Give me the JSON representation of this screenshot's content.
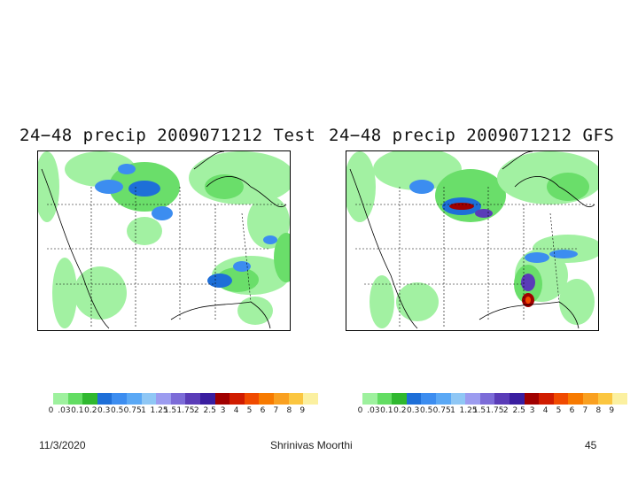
{
  "slide": {
    "date": "11/3/2020",
    "author": "Shrinivas Moorthi",
    "page_number": "45"
  },
  "panels": [
    {
      "title": "24−48 precip 2009071212 Test"
    },
    {
      "title": "24−48 precip 2009071212 GFS"
    }
  ],
  "colorbar": {
    "colors": [
      "#9ef19e",
      "#63dd63",
      "#2fb82f",
      "#1e6fd8",
      "#3c8df0",
      "#5aa8f5",
      "#8fc7f5",
      "#9c9cf0",
      "#7c6cd8",
      "#5a3cb8",
      "#3a1ea0",
      "#a00000",
      "#d01c00",
      "#f04a00",
      "#f77a00",
      "#f9a020",
      "#fbc640",
      "#fbf0a0"
    ],
    "labels": [
      "0",
      ".03",
      "0.1",
      "0.2",
      "0.3",
      "0.5",
      "0.75",
      "1",
      "1.25",
      "1.5",
      "1.75",
      "2",
      "2.5",
      "3",
      "4",
      "5",
      "6",
      "7",
      "8",
      "9"
    ]
  }
}
